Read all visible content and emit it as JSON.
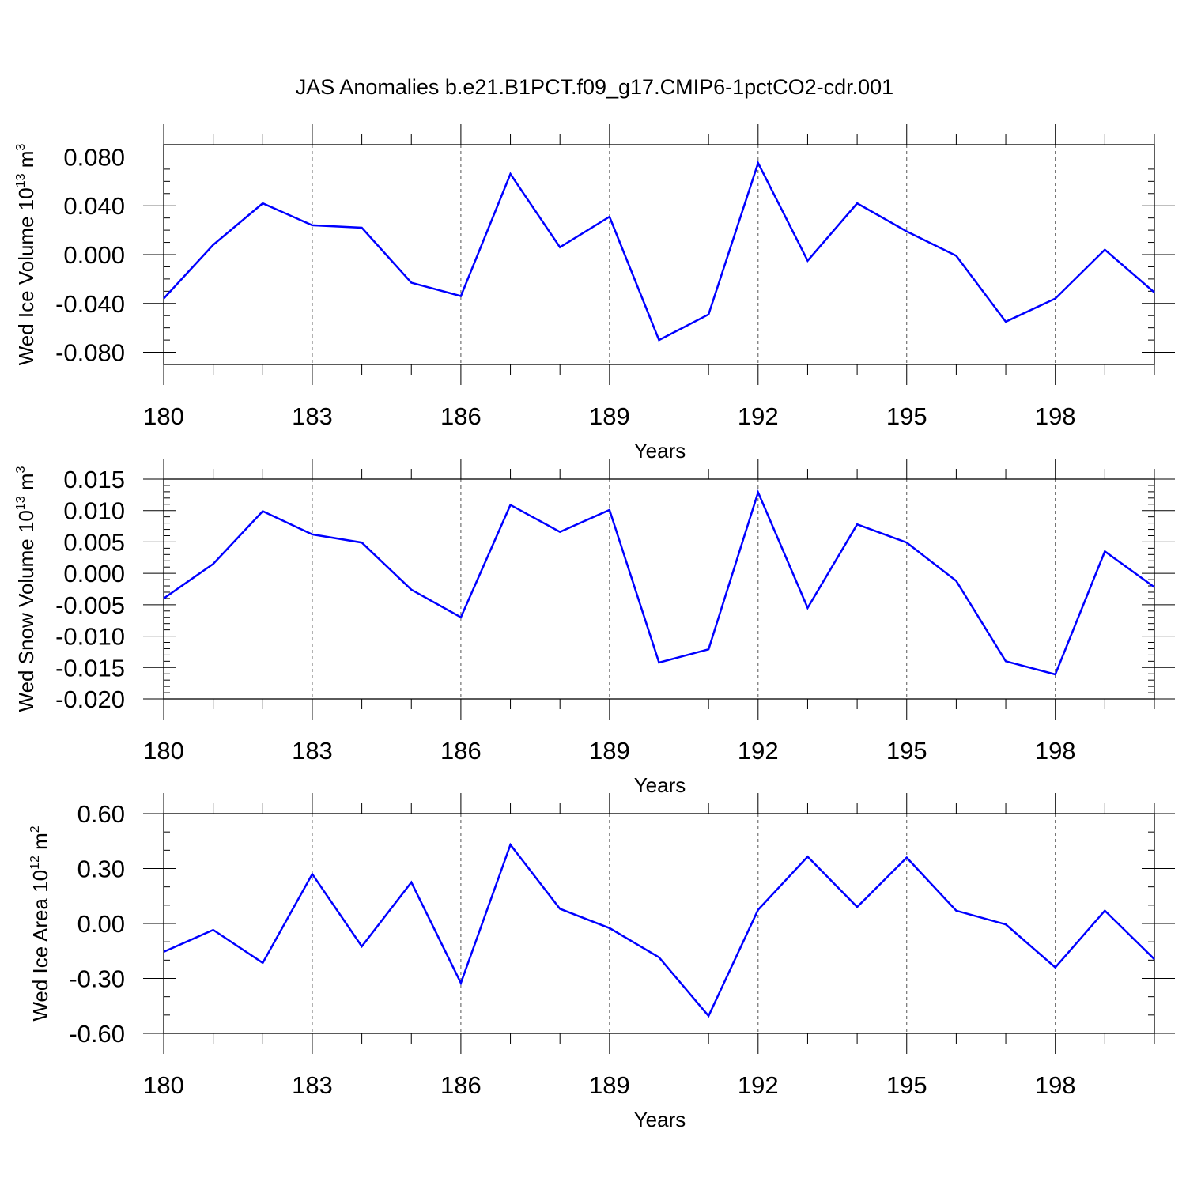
{
  "title": "JAS Anomalies b.e21.B1PCT.f09_g17.CMIP6-1pctCO2-cdr.001",
  "chart_data": [
    {
      "type": "line",
      "ylabel": {
        "text": "Wed Ice Volume 10",
        "exponent": "13",
        "unit": " m",
        "unit_exponent": "3"
      },
      "xlabel": "Years",
      "x": [
        180,
        181,
        182,
        183,
        184,
        185,
        186,
        187,
        188,
        189,
        190,
        191,
        192,
        193,
        194,
        195,
        196,
        197,
        198,
        199,
        200
      ],
      "values": [
        -0.036,
        0.008,
        0.042,
        0.024,
        0.022,
        -0.023,
        -0.034,
        0.066,
        0.006,
        0.031,
        -0.07,
        -0.049,
        0.075,
        -0.005,
        0.042,
        0.019,
        -0.001,
        -0.055,
        -0.036,
        0.004,
        -0.031
      ],
      "xlim": [
        180,
        200
      ],
      "ylim": [
        -0.09,
        0.09
      ],
      "yticks": [
        -0.08,
        -0.04,
        0.0,
        0.04,
        0.08
      ],
      "ytick_labels": [
        "-0.080",
        "-0.040",
        "0.000",
        "0.040",
        "0.080"
      ],
      "yminor_step": 0.01,
      "xticks": [
        180,
        183,
        186,
        189,
        192,
        195,
        198
      ],
      "xtick_labels": [
        "180",
        "183",
        "186",
        "189",
        "192",
        "195",
        "198"
      ],
      "grid": "dashed vertical at major x ticks"
    },
    {
      "type": "line",
      "ylabel": {
        "text": "Wed Snow Volume 10",
        "exponent": "13",
        "unit": " m",
        "unit_exponent": "3"
      },
      "xlabel": "Years",
      "x": [
        180,
        181,
        182,
        183,
        184,
        185,
        186,
        187,
        188,
        189,
        190,
        191,
        192,
        193,
        194,
        195,
        196,
        197,
        198,
        199,
        200
      ],
      "values": [
        -0.004,
        0.0015,
        0.0099,
        0.0062,
        0.0049,
        -0.0026,
        -0.007,
        0.0109,
        0.0066,
        0.0101,
        -0.0142,
        -0.0121,
        0.0129,
        -0.0055,
        0.0078,
        0.0049,
        -0.0012,
        -0.014,
        -0.0161,
        0.0035,
        -0.0022
      ],
      "xlim": [
        180,
        200
      ],
      "ylim": [
        -0.02,
        0.015
      ],
      "yticks": [
        -0.02,
        -0.015,
        -0.01,
        -0.005,
        0.0,
        0.005,
        0.01,
        0.015
      ],
      "ytick_labels": [
        "-0.020",
        "-0.015",
        "-0.010",
        "-0.005",
        "0.000",
        "0.005",
        "0.010",
        "0.015"
      ],
      "yminor_step": 0.001,
      "xticks": [
        180,
        183,
        186,
        189,
        192,
        195,
        198
      ],
      "xtick_labels": [
        "180",
        "183",
        "186",
        "189",
        "192",
        "195",
        "198"
      ],
      "grid": "dashed vertical at major x ticks"
    },
    {
      "type": "line",
      "ylabel": {
        "text": "Wed Ice Area 10",
        "exponent": "12",
        "unit": " m",
        "unit_exponent": "2"
      },
      "xlabel": "Years",
      "x": [
        180,
        181,
        182,
        183,
        184,
        185,
        186,
        187,
        188,
        189,
        190,
        191,
        192,
        193,
        194,
        195,
        196,
        197,
        198,
        199,
        200
      ],
      "values": [
        -0.155,
        -0.035,
        -0.215,
        0.27,
        -0.125,
        0.225,
        -0.325,
        0.43,
        0.08,
        -0.025,
        -0.185,
        -0.505,
        0.075,
        0.365,
        0.09,
        0.36,
        0.07,
        -0.005,
        -0.24,
        0.07,
        -0.195
      ],
      "xlim": [
        180,
        200
      ],
      "ylim": [
        -0.6,
        0.6
      ],
      "yticks": [
        -0.6,
        -0.3,
        0.0,
        0.3,
        0.6
      ],
      "ytick_labels": [
        "-0.60",
        "-0.30",
        "0.00",
        "0.30",
        "0.60"
      ],
      "yminor_step": 0.1,
      "xticks": [
        180,
        183,
        186,
        189,
        192,
        195,
        198
      ],
      "xtick_labels": [
        "180",
        "183",
        "186",
        "189",
        "192",
        "195",
        "198"
      ],
      "grid": "dashed vertical at major x ticks"
    }
  ]
}
